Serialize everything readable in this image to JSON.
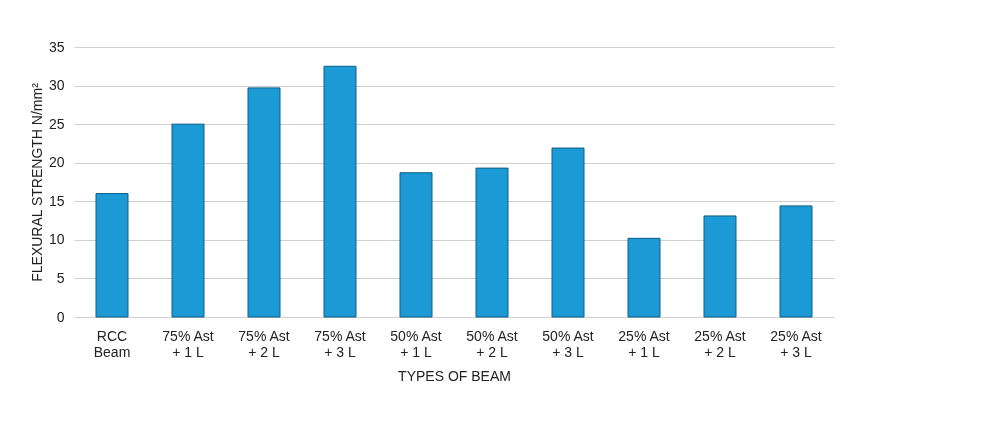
{
  "chart_data": {
    "type": "bar",
    "xlabel": "TYPES OF BEAM",
    "ylabel": "FLEXURAL STRENGTH N/mm²",
    "categories": [
      "RCC Beam",
      "75% Ast + 1 L",
      "75% Ast + 2 L",
      "75% Ast + 3 L",
      "50% Ast + 1 L",
      "50% Ast + 2 L",
      "50% Ast + 3 L",
      "25% Ast + 1 L",
      "25% Ast + 2 L",
      "25% Ast + 3 L"
    ],
    "values": [
      16,
      25,
      29.7,
      32.5,
      18.7,
      19.3,
      21.9,
      10.2,
      13.1,
      14.4
    ],
    "color": "#1b9ad6",
    "ylim": [
      0,
      35
    ],
    "yticks": [
      0,
      5,
      10,
      15,
      20,
      25,
      30,
      35
    ],
    "grid": "y"
  }
}
